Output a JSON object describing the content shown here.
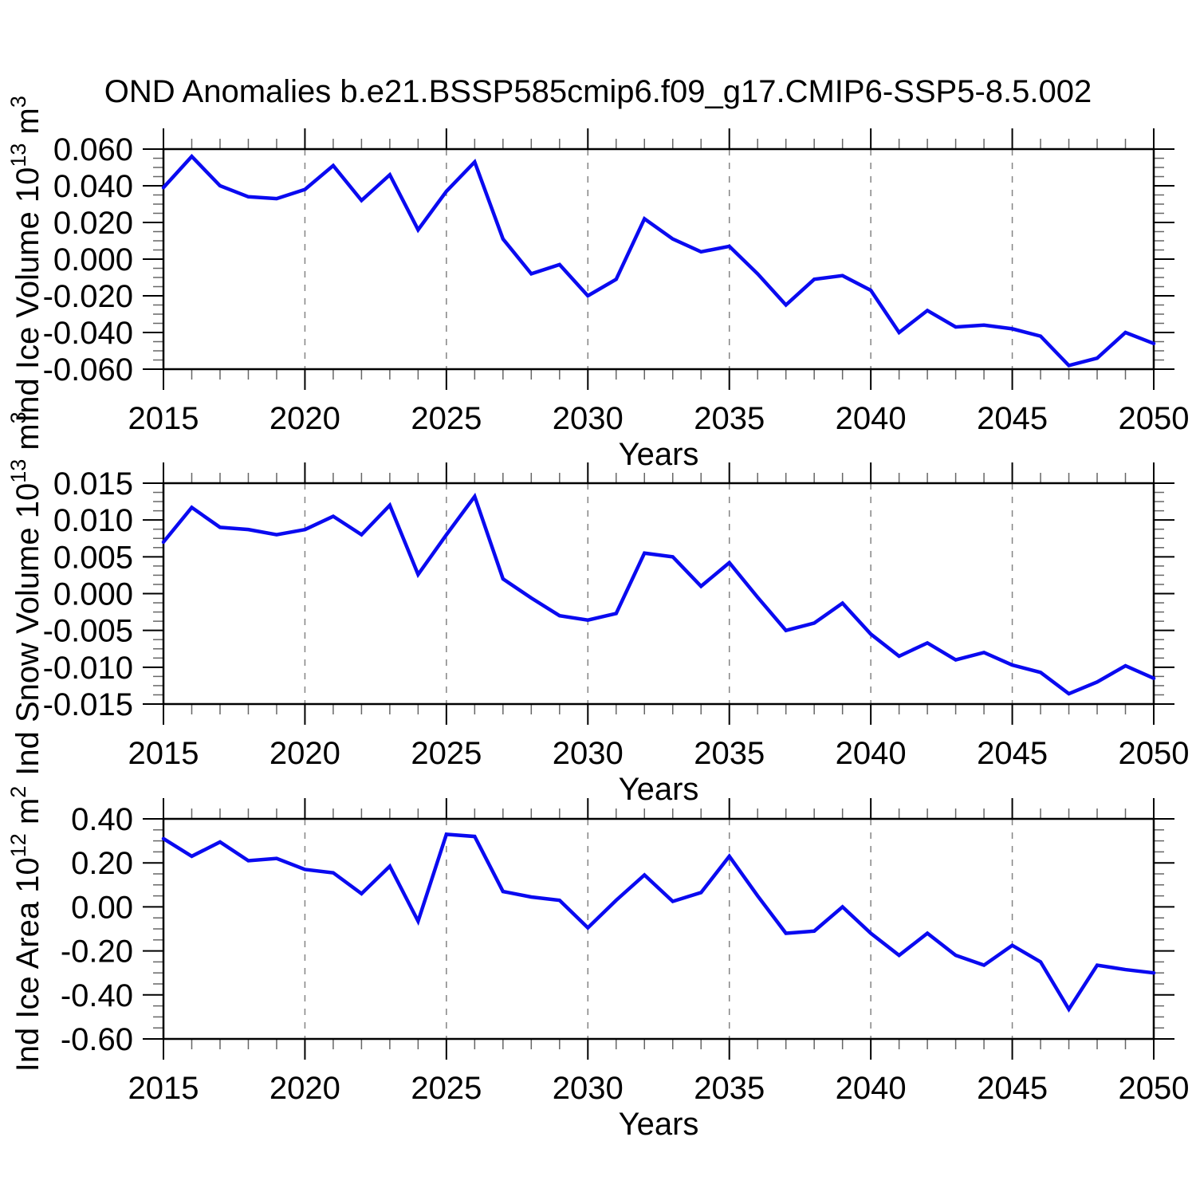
{
  "title": "OND Anomalies b.e21.BSSP585cmip6.f09_g17.CMIP6-SSP5-8.5.002",
  "style": {
    "line_color": "#0a0af0",
    "frame_color": "#000000",
    "grid_color": "#848484",
    "minor_tick_color": "#666666",
    "background": "#ffffff"
  },
  "chart_data": [
    {
      "id": "ice-volume-chart",
      "type": "line",
      "title": "",
      "ylabel": "Ind Ice Volume 10^13 m^3",
      "ylabel_parts": [
        "Ind Ice Volume 10",
        {
          "sup": "13"
        },
        " m",
        {
          "sup": "3"
        }
      ],
      "xlabel": "Years",
      "legend": null,
      "grid": "vertical-dashed",
      "x": [
        2015,
        2016,
        2017,
        2018,
        2019,
        2020,
        2021,
        2022,
        2023,
        2024,
        2025,
        2026,
        2027,
        2028,
        2029,
        2030,
        2031,
        2032,
        2033,
        2034,
        2035,
        2036,
        2037,
        2038,
        2039,
        2040,
        2041,
        2042,
        2043,
        2044,
        2045,
        2046,
        2047,
        2048,
        2049,
        2050
      ],
      "values": [
        0.039,
        0.056,
        0.04,
        0.034,
        0.033,
        0.038,
        0.051,
        0.032,
        0.046,
        0.016,
        0.037,
        0.053,
        0.011,
        -0.008,
        -0.003,
        -0.02,
        -0.011,
        0.022,
        0.011,
        0.004,
        0.007,
        -0.008,
        -0.025,
        -0.011,
        -0.009,
        -0.017,
        -0.04,
        -0.028,
        -0.037,
        -0.036,
        -0.038,
        -0.042,
        -0.058,
        -0.054,
        -0.04,
        -0.046
      ],
      "ylim": [
        -0.06,
        0.06
      ],
      "yticks": [
        0.06,
        0.04,
        0.02,
        0.0,
        -0.02,
        -0.04,
        -0.06
      ],
      "yticklabels": [
        "0.060",
        "0.040",
        "0.020",
        "0.000",
        "-0.020",
        "-0.040",
        "-0.060"
      ],
      "yminor_step": 0.005,
      "xlim": [
        2015,
        2050
      ],
      "xticks": [
        2015,
        2020,
        2025,
        2030,
        2035,
        2040,
        2045,
        2050
      ],
      "xticklabels": [
        "2015",
        "2020",
        "2025",
        "2030",
        "2035",
        "2040",
        "2045",
        "2050"
      ],
      "xminor_step": 1,
      "xgrid": [
        2020,
        2025,
        2030,
        2035,
        2040,
        2045
      ]
    },
    {
      "id": "snow-volume-chart",
      "type": "line",
      "title": "",
      "ylabel": "Ind Snow Volume 10^13 m^3",
      "ylabel_parts": [
        "Ind Snow Volume 10",
        {
          "sup": "13"
        },
        " m",
        {
          "sup": "3"
        }
      ],
      "xlabel": "Years",
      "legend": null,
      "grid": "vertical-dashed",
      "x": [
        2015,
        2016,
        2017,
        2018,
        2019,
        2020,
        2021,
        2022,
        2023,
        2024,
        2025,
        2026,
        2027,
        2028,
        2029,
        2030,
        2031,
        2032,
        2033,
        2034,
        2035,
        2036,
        2037,
        2038,
        2039,
        2040,
        2041,
        2042,
        2043,
        2044,
        2045,
        2046,
        2047,
        2048,
        2049,
        2050
      ],
      "values": [
        0.007,
        0.0117,
        0.009,
        0.0087,
        0.008,
        0.0087,
        0.0105,
        0.008,
        0.012,
        0.0026,
        0.008,
        0.0132,
        0.002,
        -0.0006,
        -0.003,
        -0.0036,
        -0.0027,
        0.0055,
        0.005,
        0.001,
        0.0042,
        -0.0005,
        -0.005,
        -0.004,
        -0.0013,
        -0.0055,
        -0.0085,
        -0.0067,
        -0.009,
        -0.008,
        -0.0097,
        -0.0107,
        -0.0136,
        -0.012,
        -0.0098,
        -0.0115
      ],
      "ylim": [
        -0.015,
        0.015
      ],
      "yticks": [
        0.015,
        0.01,
        0.005,
        0.0,
        -0.005,
        -0.01,
        -0.015
      ],
      "yticklabels": [
        "0.015",
        "0.010",
        "0.005",
        "0.000",
        "-0.005",
        "-0.010",
        "-0.015"
      ],
      "yminor_step": 0.00125,
      "xlim": [
        2015,
        2050
      ],
      "xticks": [
        2015,
        2020,
        2025,
        2030,
        2035,
        2040,
        2045,
        2050
      ],
      "xticklabels": [
        "2015",
        "2020",
        "2025",
        "2030",
        "2035",
        "2040",
        "2045",
        "2050"
      ],
      "xminor_step": 1,
      "xgrid": [
        2020,
        2025,
        2030,
        2035,
        2040,
        2045
      ]
    },
    {
      "id": "ice-area-chart",
      "type": "line",
      "title": "",
      "ylabel": "Ind Ice Area 10^12 m^2",
      "ylabel_parts": [
        "Ind Ice Area 10",
        {
          "sup": "12"
        },
        " m",
        {
          "sup": "2"
        }
      ],
      "xlabel": "Years",
      "legend": null,
      "grid": "vertical-dashed",
      "x": [
        2015,
        2016,
        2017,
        2018,
        2019,
        2020,
        2021,
        2022,
        2023,
        2024,
        2025,
        2026,
        2027,
        2028,
        2029,
        2030,
        2031,
        2032,
        2033,
        2034,
        2035,
        2036,
        2037,
        2038,
        2039,
        2040,
        2041,
        2042,
        2043,
        2044,
        2045,
        2046,
        2047,
        2048,
        2049,
        2050
      ],
      "values": [
        0.31,
        0.23,
        0.295,
        0.21,
        0.22,
        0.17,
        0.155,
        0.06,
        0.185,
        -0.065,
        0.33,
        0.32,
        0.07,
        0.045,
        0.03,
        -0.095,
        0.03,
        0.145,
        0.025,
        0.065,
        0.23,
        0.05,
        -0.12,
        -0.11,
        0.0,
        -0.12,
        -0.22,
        -0.12,
        -0.22,
        -0.265,
        -0.175,
        -0.25,
        -0.465,
        -0.265,
        -0.285,
        -0.3
      ],
      "ylim": [
        -0.6,
        0.4
      ],
      "yticks": [
        0.4,
        0.2,
        0.0,
        -0.2,
        -0.4,
        -0.6
      ],
      "yticklabels": [
        "0.40",
        "0.20",
        "0.00",
        "-0.20",
        "-0.40",
        "-0.60"
      ],
      "yminor_step": 0.05,
      "xlim": [
        2015,
        2050
      ],
      "xticks": [
        2015,
        2020,
        2025,
        2030,
        2035,
        2040,
        2045,
        2050
      ],
      "xticklabels": [
        "2015",
        "2020",
        "2025",
        "2030",
        "2035",
        "2040",
        "2045",
        "2050"
      ],
      "xminor_step": 1,
      "xgrid": [
        2020,
        2025,
        2030,
        2035,
        2040,
        2045
      ]
    }
  ]
}
